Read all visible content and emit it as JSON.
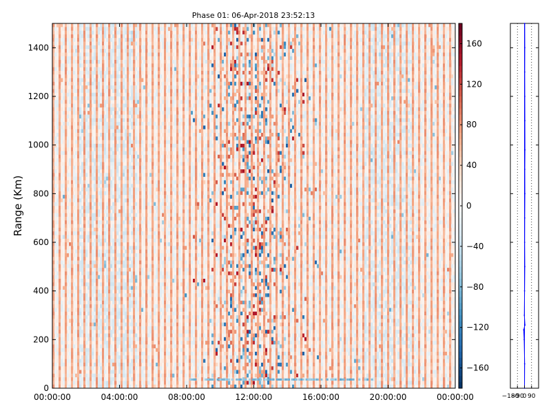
{
  "chart_data": [
    {
      "type": "heatmap",
      "title": "Phase 01: 06-Apr-2018 23:52:13",
      "ylabel": "Range (Km)",
      "xlabel": "",
      "x_tick_labels": [
        "00:00:00",
        "04:00:00",
        "08:00:00",
        "12:00:00",
        "16:00:00",
        "20:00:00",
        "00:00:00"
      ],
      "x_range_hours": [
        0,
        24
      ],
      "y_ticks": [
        0,
        200,
        400,
        600,
        800,
        1000,
        1200,
        1400
      ],
      "ylim": [
        0,
        1500
      ],
      "colormap": "RdBu_r",
      "colorbar": {
        "ticks": [
          160,
          120,
          80,
          40,
          0,
          -40,
          -80,
          -120,
          -160
        ],
        "vmin": -180,
        "vmax": 180,
        "colors": [
          "#053061",
          "#2166ac",
          "#4393c3",
          "#92c5de",
          "#d1e5f0",
          "#f7f7f7",
          "#fddbc7",
          "#f4a582",
          "#d6604d",
          "#b2182b",
          "#67001f"
        ]
      },
      "grid": false
    },
    {
      "type": "line",
      "x_tick_labels": [
        "-180",
        "-90",
        "0",
        "90"
      ],
      "x_ticks": [
        -180,
        -90,
        0,
        90
      ],
      "xlim": [
        -180,
        180
      ],
      "ylim": [
        0,
        1500
      ],
      "y_ticks": [
        0,
        200,
        400,
        600,
        800,
        1000,
        1200,
        1400
      ],
      "grid": true,
      "series": [
        {
          "color": "#0000ff",
          "points": [
            [
              0,
              0
            ],
            [
              2,
              100
            ],
            [
              -4,
              200
            ],
            [
              -10,
              240
            ],
            [
              6,
              260
            ],
            [
              -2,
              300
            ],
            [
              1,
              400
            ],
            [
              4,
              500
            ],
            [
              2,
              600
            ],
            [
              3,
              700
            ],
            [
              5,
              800
            ],
            [
              4,
              900
            ],
            [
              6,
              980
            ],
            [
              5,
              1100
            ],
            [
              4,
              1200
            ],
            [
              3,
              1300
            ],
            [
              4,
              1400
            ],
            [
              3,
              1500
            ]
          ]
        }
      ],
      "reference_line": {
        "x": 0,
        "color": "#0000ff"
      }
    }
  ]
}
